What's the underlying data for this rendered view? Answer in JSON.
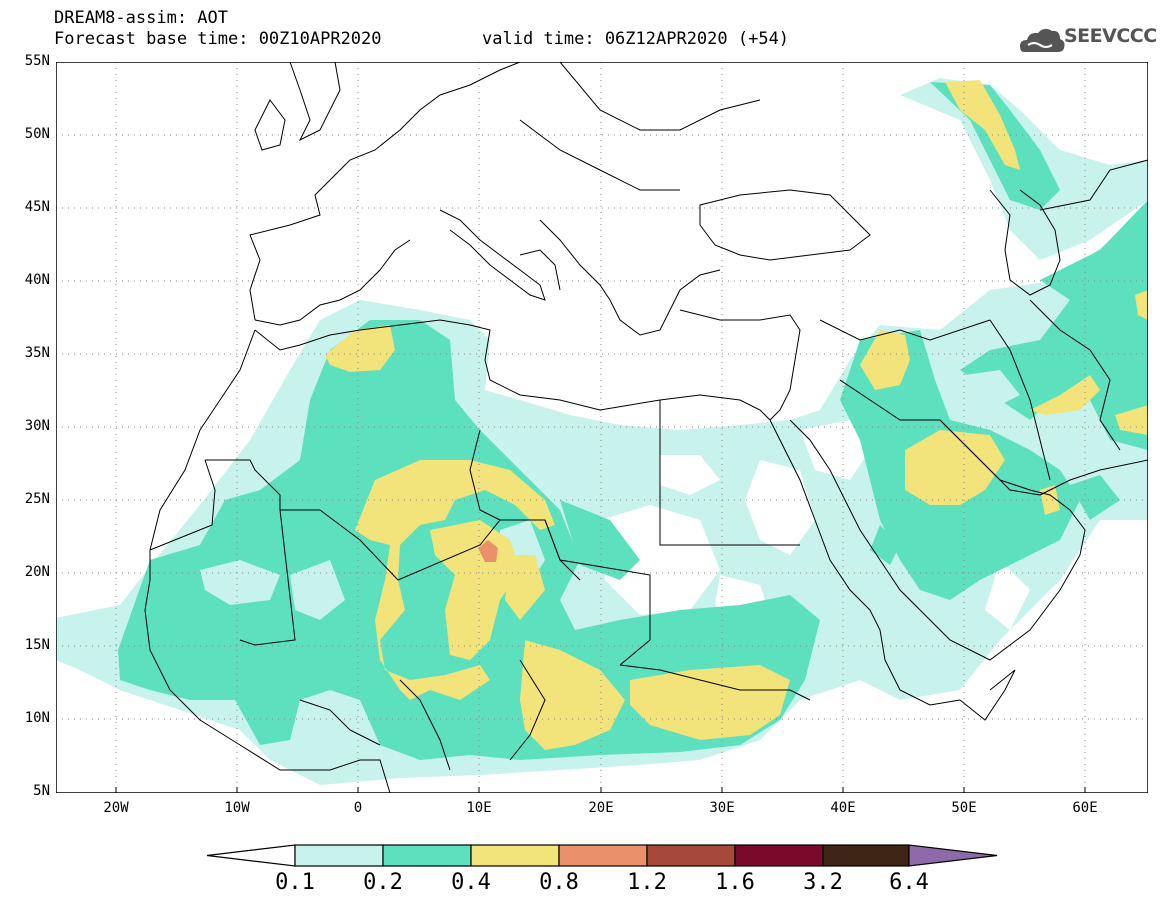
{
  "header": {
    "title_line1": "DREAM8-assim: AOT",
    "title_line2": "Forecast base time: 00Z10APR2020",
    "valid_time": "valid time: 06Z12APR2020 (+54)",
    "logo_text": "SEEVCCC"
  },
  "map": {
    "lon_labels": [
      "20W",
      "10W",
      "0",
      "10E",
      "20E",
      "30E",
      "40E",
      "50E",
      "60E"
    ],
    "lat_labels": [
      "55N",
      "50N",
      "45N",
      "40N",
      "35N",
      "30N",
      "25N",
      "20N",
      "15N",
      "10N",
      "5N"
    ],
    "lon_range": [
      -25,
      65
    ],
    "lat_range": [
      5,
      55
    ]
  },
  "colorbar": {
    "labels": [
      "0.1",
      "0.2",
      "0.4",
      "0.8",
      "1.2",
      "1.6",
      "3.2",
      "6.4"
    ],
    "colors": [
      "#ffffff",
      "#c8f2ec",
      "#5ce0be",
      "#f2e37a",
      "#ea906a",
      "#a54a3a",
      "#7a0a2a",
      "#3e2414",
      "#8e6aa8"
    ]
  },
  "legend_colors": {
    "c01": "#c8f2ec",
    "c02": "#5ce0be",
    "c04": "#f2e37a",
    "c08": "#ea906a"
  }
}
